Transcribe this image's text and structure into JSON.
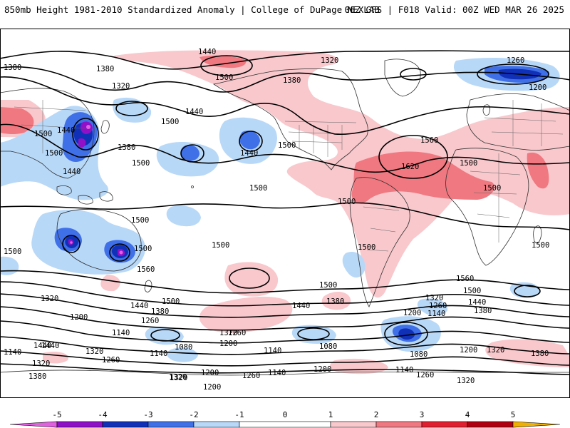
{
  "header": {
    "title": "850mb Height 1981-2010 Standardized Anomaly | College of DuPage NEXLAB",
    "run_info": "06Z GFS | F018 Valid: 00Z WED MAR 26 2025"
  },
  "contour_labels": [
    {
      "text": "1440"
    },
    {
      "text": "1500"
    },
    {
      "text": "1380"
    },
    {
      "text": "1320"
    },
    {
      "text": "1260"
    },
    {
      "text": "1200"
    },
    {
      "text": "1380"
    },
    {
      "text": "1320"
    },
    {
      "text": "1440"
    },
    {
      "text": "1500"
    },
    {
      "text": "1440"
    },
    {
      "text": "1500"
    },
    {
      "text": "1560"
    },
    {
      "text": "1620"
    },
    {
      "text": "1500"
    },
    {
      "text": "1500"
    },
    {
      "text": "1500"
    },
    {
      "text": "1500"
    },
    {
      "text": "1500"
    },
    {
      "text": "1500"
    },
    {
      "text": "1380"
    },
    {
      "text": "1440"
    },
    {
      "text": "1500"
    },
    {
      "text": "1500"
    },
    {
      "text": "1440"
    },
    {
      "text": "1500"
    },
    {
      "text": "1380"
    },
    {
      "text": "1500"
    },
    {
      "text": "1500"
    },
    {
      "text": "1500"
    },
    {
      "text": "1560"
    },
    {
      "text": "1500"
    },
    {
      "text": "1500"
    },
    {
      "text": "1500"
    },
    {
      "text": "1440"
    },
    {
      "text": "1380"
    },
    {
      "text": "1320"
    },
    {
      "text": "1440"
    },
    {
      "text": "1380"
    },
    {
      "text": "1260"
    },
    {
      "text": "1200"
    },
    {
      "text": "1140"
    },
    {
      "text": "1080"
    },
    {
      "text": "1320"
    },
    {
      "text": "1200"
    },
    {
      "text": "1140"
    },
    {
      "text": "1080"
    },
    {
      "text": "1140"
    },
    {
      "text": "1140"
    },
    {
      "text": "1080"
    },
    {
      "text": "1200"
    },
    {
      "text": "1320"
    },
    {
      "text": "1380"
    },
    {
      "text": "1440"
    },
    {
      "text": "1320"
    },
    {
      "text": "1260"
    },
    {
      "text": "1200"
    },
    {
      "text": "1140"
    },
    {
      "text": "1260"
    },
    {
      "text": "1320"
    },
    {
      "text": "1560"
    },
    {
      "text": "1500"
    },
    {
      "text": "1440"
    },
    {
      "text": "1380"
    },
    {
      "text": "1320"
    },
    {
      "text": "1260"
    },
    {
      "text": "1140"
    },
    {
      "text": "1200"
    },
    {
      "text": "1320"
    },
    {
      "text": "1380"
    },
    {
      "text": "1440"
    },
    {
      "text": "1200"
    },
    {
      "text": "1260"
    },
    {
      "text": "1320"
    },
    {
      "text": "1200"
    },
    {
      "text": "1140"
    },
    {
      "text": "1260"
    },
    {
      "text": "1320"
    }
  ],
  "colorbar": {
    "ticks": [
      "-5",
      "-4",
      "-3",
      "-2",
      "-1",
      "0",
      "1",
      "2",
      "3",
      "4",
      "5"
    ],
    "colors": {
      "m5": "#e060e0",
      "m4": "#9010c8",
      "m3": "#1030b8",
      "m2": "#4070e8",
      "m1": "#b8d8f8",
      "zero": "#ffffff",
      "p1": "#f8c8cc",
      "p2": "#f07880",
      "p3": "#e02030",
      "p4": "#b00010",
      "p5": "#f0b000"
    }
  }
}
